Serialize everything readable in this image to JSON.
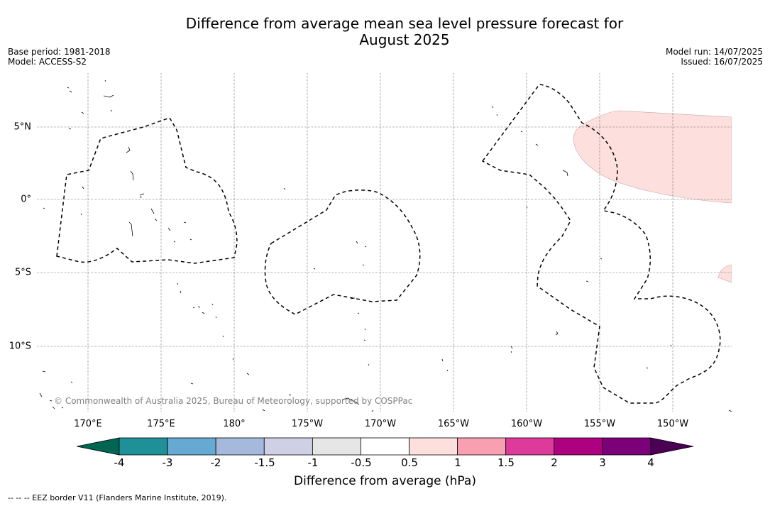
{
  "title_line1": "Difference from average mean sea level pressure forecast for",
  "title_line2": "August 2025",
  "base_period": "Base period: 1981-2018",
  "model": "Model: ACCESS-S2",
  "model_run": "Model run: 14/07/2025",
  "issued": "Issued: 16/07/2025",
  "copyright": "© Commonwealth of Australia 2025, Bureau of Meteorology, supported by COSPPac",
  "longitude_labels": [
    "170°E",
    "175°E",
    "180°",
    "175°W",
    "170°W",
    "165°W",
    "160°W",
    "155°W",
    "150°W"
  ],
  "latitude_labels": [
    "5°N",
    "0°",
    "5°S",
    "10°S"
  ],
  "colorbar": {
    "title": "Difference from average (hPa)",
    "ticks": [
      "-4",
      "-3",
      "-2",
      "-1.5",
      "-1",
      "-0.5",
      "0.5",
      "1",
      "1.5",
      "2",
      "3",
      "4"
    ],
    "low_extend_color": "#006652",
    "high_extend_color": "#4b0055",
    "colors": [
      "#1f8f98",
      "#66a9d2",
      "#a4b9dc",
      "#cfcfe6",
      "#e6e6e6",
      "#ffffff",
      "#fde0de",
      "#f89fb2",
      "#de3a9c",
      "#ae0180",
      "#7a0177"
    ]
  },
  "anomaly_regions": [
    {
      "label": "0.5 to 1 hPa",
      "color": "#fde0de"
    }
  ],
  "footnote": "--  --  -- EEZ border V11 (Flanders Marine Institute, 2019)."
}
